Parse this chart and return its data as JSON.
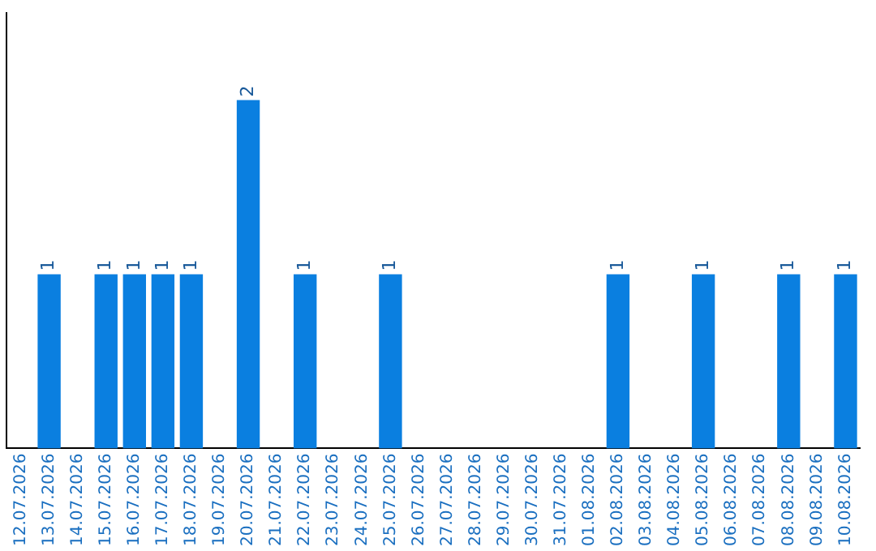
{
  "chart_data": {
    "type": "bar",
    "categories": [
      "12.07.2026",
      "13.07.2026",
      "14.07.2026",
      "15.07.2026",
      "16.07.2026",
      "17.07.2026",
      "18.07.2026",
      "19.07.2026",
      "20.07.2026",
      "21.07.2026",
      "22.07.2026",
      "23.07.2026",
      "24.07.2026",
      "25.07.2026",
      "26.07.2026",
      "27.07.2026",
      "28.07.2026",
      "29.07.2026",
      "30.07.2026",
      "31.07.2026",
      "01.08.2026",
      "02.08.2026",
      "03.08.2026",
      "04.08.2026",
      "05.08.2026",
      "06.08.2026",
      "07.08.2026",
      "08.08.2026",
      "09.08.2026",
      "10.08.2026"
    ],
    "values": [
      0,
      1,
      0,
      1,
      1,
      1,
      1,
      0,
      2,
      0,
      1,
      0,
      0,
      1,
      0,
      0,
      0,
      0,
      0,
      0,
      0,
      1,
      0,
      0,
      1,
      0,
      0,
      1,
      0,
      1
    ],
    "value_labels": [
      null,
      "1",
      null,
      "1",
      "1",
      "1",
      "1",
      null,
      "2",
      null,
      "1",
      null,
      null,
      "1",
      null,
      null,
      null,
      null,
      null,
      null,
      null,
      "1",
      null,
      null,
      "1",
      null,
      null,
      "1",
      null,
      "1"
    ],
    "color": "#0a7fe0",
    "grid": false,
    "legend": false,
    "tick_labels": "x"
  }
}
